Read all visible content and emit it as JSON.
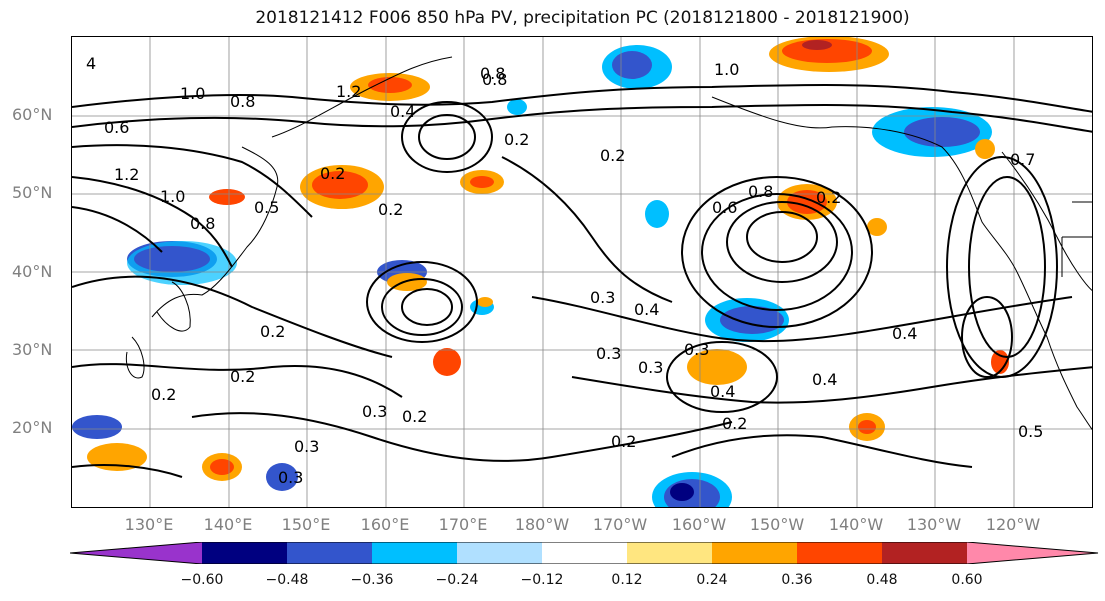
{
  "title": "2018121412 F006 850 hPa PV, precipitation PC (2018121800 - 2018121900)",
  "lat_labels": [
    "60°N",
    "50°N",
    "40°N",
    "30°N",
    "20°N"
  ],
  "lon_labels": [
    "130°E",
    "140°E",
    "150°E",
    "160°E",
    "170°E",
    "180°W",
    "170°W",
    "160°W",
    "150°W",
    "140°W",
    "130°W",
    "120°W"
  ],
  "contour_labels": [
    "4",
    "1.0",
    "0.8",
    "0.6",
    "1.2",
    "1.2",
    "1.0",
    "0.8",
    "0.5",
    "0.2",
    "0.4",
    "0.2",
    "0.2",
    "0.8",
    "0.2",
    "0.6",
    "0.8",
    "0.2",
    "0.3",
    "0.4",
    "0.3",
    "0.2",
    "0.3",
    "0.3",
    "0.2",
    "0.4",
    "0.2",
    "0.3",
    "0.3",
    "0.2",
    "0.4",
    "0.2",
    "0.4",
    "0.7",
    "1.0",
    "0.8",
    "0.5",
    "0.3",
    "0.2"
  ],
  "colorbar": {
    "ticks": [
      "−0.60",
      "−0.48",
      "−0.36",
      "−0.24",
      "−0.12",
      "0.12",
      "0.24",
      "0.36",
      "0.48",
      "0.60"
    ],
    "colors": [
      "#9933cc",
      "#000080",
      "#3355cc",
      "#00bfff",
      "#b0e0ff",
      "#ffffff",
      "#ffe680",
      "#ffa500",
      "#ff4500",
      "#b22222",
      "#ff88aa"
    ]
  }
}
